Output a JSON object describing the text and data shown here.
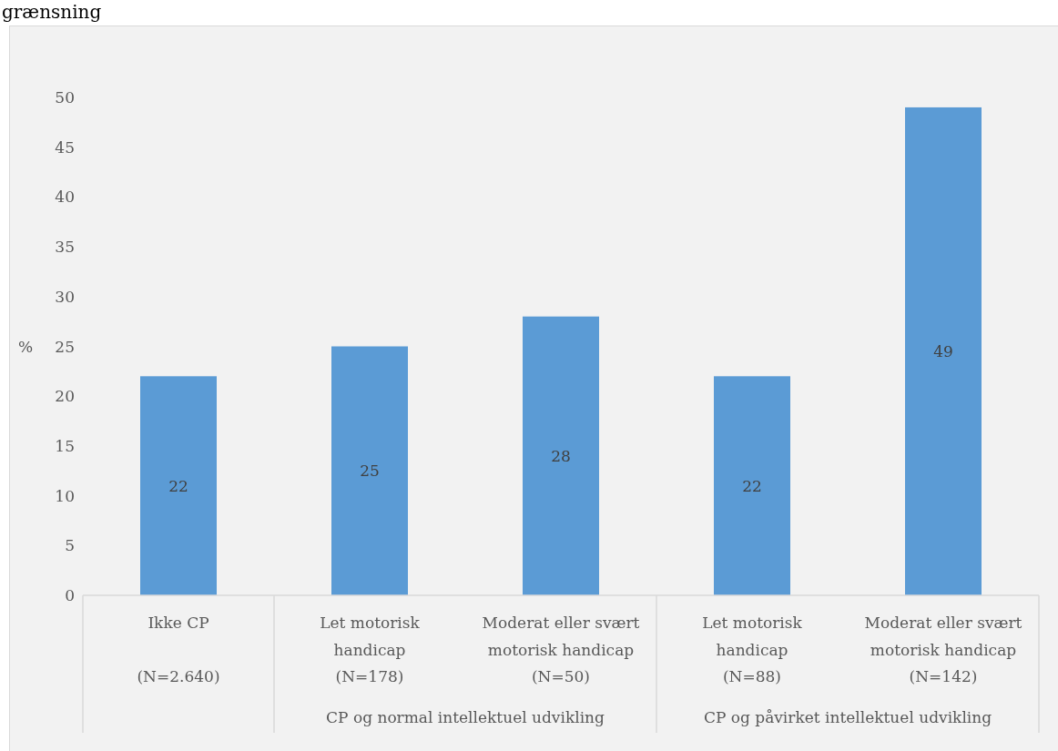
{
  "chart_data": {
    "type": "bar",
    "title": "grænsning",
    "ylabel": "%",
    "categories": [
      "Ikke CP\n\n(N=2.640)",
      "Let motorisk\nhandicap\n(N=178)",
      "Moderat eller svært\nmotorisk handicap\n(N=50)",
      "Let motorisk\nhandicap\n(N=88)",
      "Moderat eller svært\nmotorisk handicap\n(N=142)"
    ],
    "values": [
      22,
      25,
      28,
      22,
      49
    ],
    "color": "#5b9bd5",
    "ylim": [
      0,
      50
    ],
    "yticks": [
      0,
      5,
      10,
      15,
      20,
      25,
      30,
      35,
      40,
      45,
      50
    ],
    "data_labels": true,
    "annotations": [
      "CP og normal intellektuel udvikling",
      "CP og påvirket intellektuel udvikling"
    ]
  }
}
